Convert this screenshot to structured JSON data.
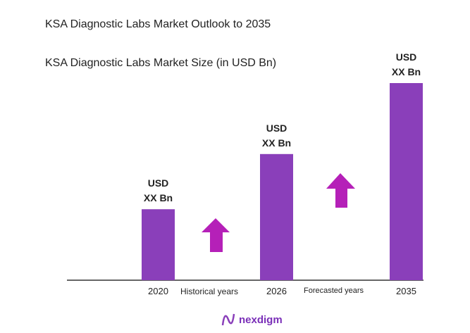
{
  "chart_data": {
    "type": "bar",
    "title": "KSA Diagnostic Labs Market Outlook to 2035",
    "subtitle": "KSA Diagnostic Labs Market Size (in USD Bn)",
    "categories": [
      "2020",
      "2026",
      "2035"
    ],
    "values_relative_percent": [
      36,
      64,
      100
    ],
    "data_labels": [
      [
        "USD",
        "XX Bn"
      ],
      [
        "USD",
        "XX Bn"
      ],
      [
        "USD",
        "XX Bn"
      ]
    ],
    "annotations": [
      "Historical years",
      "Forecasted years"
    ],
    "grid": false,
    "bar_color": "#8a3fba",
    "arrow_color": "#b520b8"
  },
  "logo": {
    "text": "nexdigm",
    "color": "#7a2fb8"
  }
}
